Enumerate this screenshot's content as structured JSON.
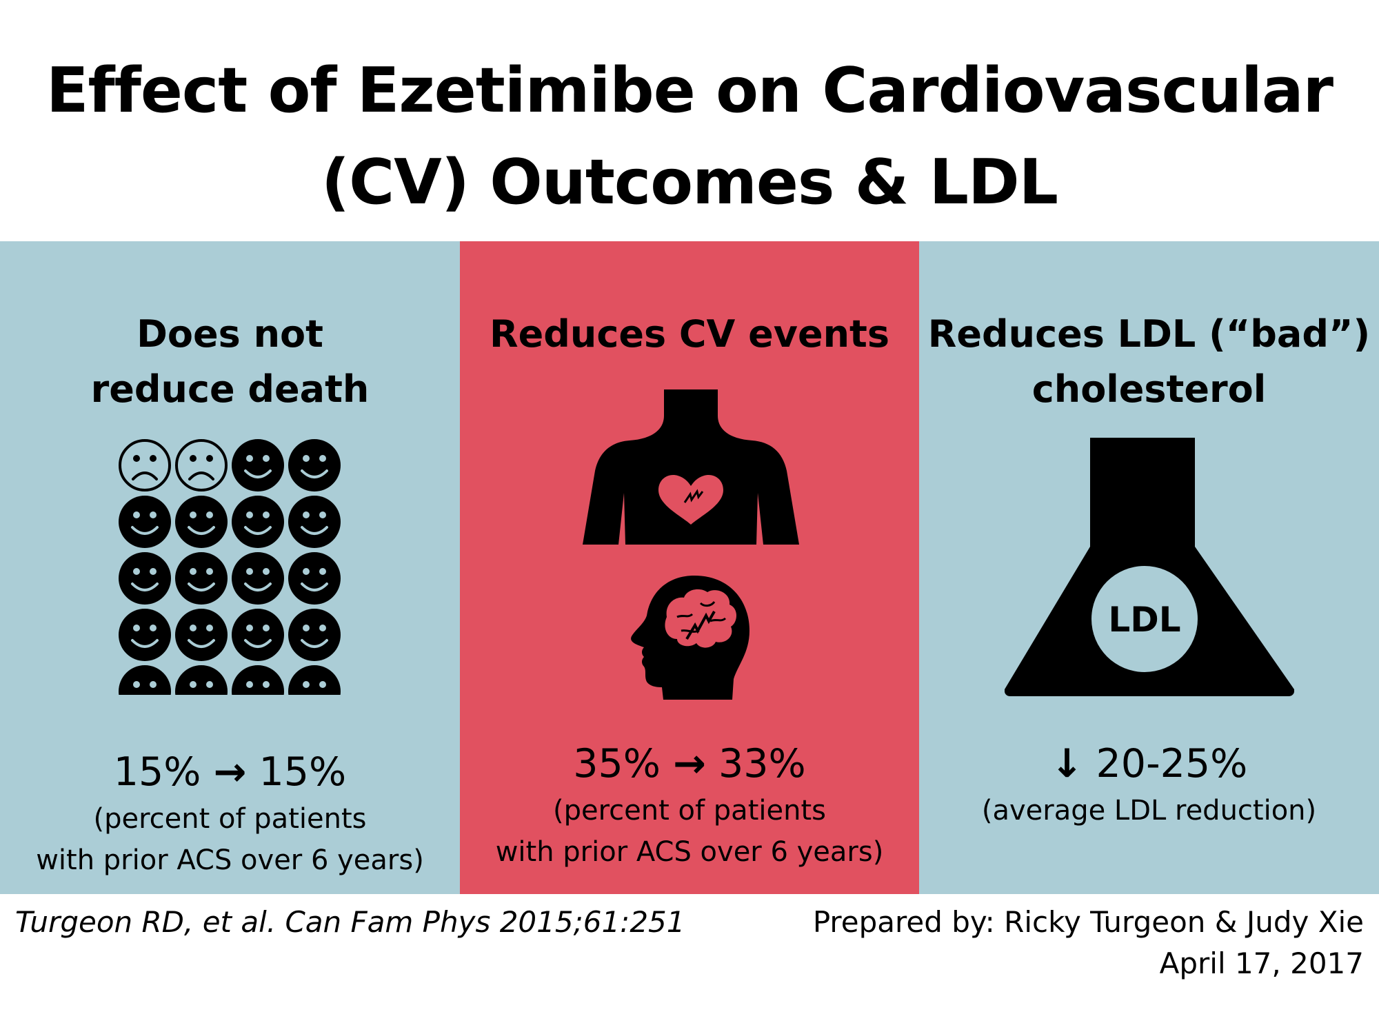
{
  "colors": {
    "blue_panel": "#abcdd6",
    "red_panel": "#e15160",
    "ink": "#000000"
  },
  "title": {
    "line1": "Effect of Ezetimibe on Cardiovascular",
    "line2": "(CV) Outcomes & LDL"
  },
  "panels": {
    "death": {
      "heading_line1": "Does not",
      "heading_line2": "reduce death",
      "icon": "smiley-face-grid-icon",
      "faces": {
        "total": 20,
        "sad": 2
      },
      "stat": {
        "from": "15%",
        "arrow": "→",
        "to": "15%"
      },
      "note_line1": "(percent of patients",
      "note_line2": "with prior ACS over 6 years)"
    },
    "cv": {
      "heading": "Reduces CV events",
      "icons": [
        "heart-attack-torso-icon",
        "stroke-head-icon"
      ],
      "stat": {
        "from": "35%",
        "arrow": "→",
        "to": "33%"
      },
      "note_line1": "(percent of patients",
      "note_line2": "with prior ACS over 6 years)"
    },
    "ldl": {
      "heading_line1": "Reduces LDL (“bad”)",
      "heading_line2": "cholesterol",
      "icon": "ldl-flask-icon",
      "flask_label": "LDL",
      "stat": {
        "arrow": "↓",
        "value": "20-25%"
      },
      "note": "(average LDL reduction)"
    }
  },
  "footer": {
    "citation": "Turgeon RD, et al. Can Fam Phys 2015;61:251",
    "credit_line1": "Prepared by: Ricky Turgeon & Judy Xie",
    "credit_line2": "April 17, 2017"
  }
}
